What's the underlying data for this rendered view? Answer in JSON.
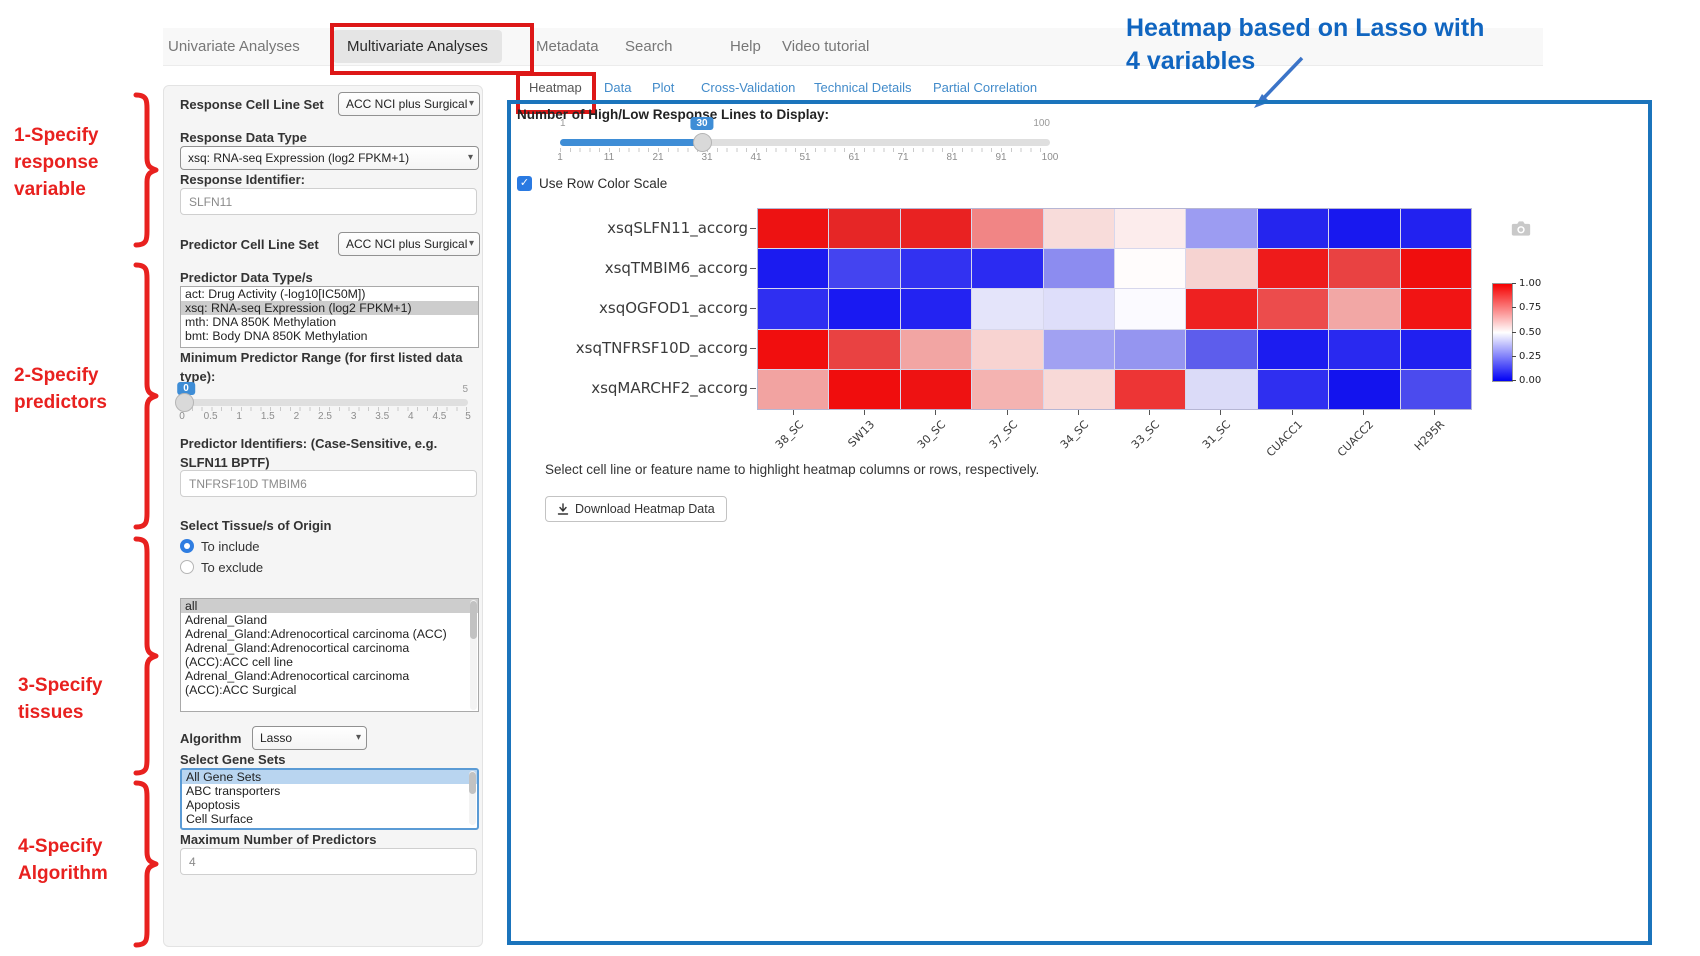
{
  "nav": {
    "items": [
      "Univariate Analyses",
      "Multivariate Analyses",
      "Metadata",
      "Search",
      "Help",
      "Video tutorial"
    ],
    "active_index": 1
  },
  "tabs": {
    "items": [
      "Heatmap",
      "Data",
      "Plot",
      "Cross-Validation",
      "Technical Details",
      "Partial Correlation"
    ],
    "active_index": 0
  },
  "annotations": {
    "steps": [
      {
        "lines": [
          "1-Specify",
          "response",
          "variable"
        ]
      },
      {
        "lines": [
          "2-Specify",
          "predictors"
        ]
      },
      {
        "lines": [
          "3-Specify",
          "tissues"
        ]
      },
      {
        "lines": [
          "4-Specify",
          "Algorithm"
        ]
      }
    ],
    "note": "Heatmap based on Lasso with 4 variables",
    "colors": {
      "red": "#e8211f",
      "blue": "#1065c0",
      "box_border": "#1b74bc"
    }
  },
  "sidebar": {
    "response_set": {
      "label": "Response Cell Line Set",
      "value": "ACC NCI plus Surgical"
    },
    "response_type": {
      "label": "Response Data Type",
      "value": "xsq: RNA-seq Expression (log2 FPKM+1)"
    },
    "response_id": {
      "label": "Response Identifier:",
      "value": "SLFN11"
    },
    "predictor_set": {
      "label": "Predictor Cell Line Set",
      "value": "ACC NCI plus Surgical"
    },
    "predictor_types": {
      "label": "Predictor Data Type/s",
      "options": [
        "act: Drug Activity (-log10[IC50M])",
        "xsq: RNA-seq Expression (log2 FPKM+1)",
        "mth: DNA 850K Methylation",
        "bmt: Body DNA 850K Methylation"
      ],
      "selected_index": 1
    },
    "min_range": {
      "label": "Minimum Predictor Range (for first listed data type):",
      "value": "0",
      "min": "0",
      "max": "5",
      "ticks": [
        "0",
        "0.5",
        "1",
        "1.5",
        "2",
        "2.5",
        "3",
        "3.5",
        "4",
        "4.5",
        "5"
      ]
    },
    "predictor_ids": {
      "label": "Predictor Identifiers: (Case-Sensitive, e.g. SLFN11 BPTF)",
      "value": "TNFRSF10D TMBIM6"
    },
    "tissues": {
      "label": "Select Tissue/s of Origin",
      "radios": [
        {
          "label": "To include",
          "selected": true
        },
        {
          "label": "To exclude",
          "selected": false
        }
      ],
      "options": [
        "all",
        "Adrenal_Gland",
        "Adrenal_Gland:Adrenocortical carcinoma (ACC)",
        "Adrenal_Gland:Adrenocortical carcinoma (ACC):ACC cell line",
        "Adrenal_Gland:Adrenocortical carcinoma (ACC):ACC Surgical"
      ],
      "selected_index": 0
    },
    "algorithm": {
      "label": "Algorithm",
      "value": "Lasso"
    },
    "gene_sets": {
      "label": "Select Gene Sets",
      "options": [
        "All Gene Sets",
        "ABC transporters",
        "Apoptosis",
        "Cell Surface"
      ],
      "selected_index": 0
    },
    "max_predictors": {
      "label": "Maximum Number of Predictors",
      "value": "4"
    }
  },
  "main": {
    "heading": "Number of High/Low Response Lines to Display:",
    "slider": {
      "min": "1",
      "max": "100",
      "value": "30",
      "ticks": [
        "1",
        "11",
        "21",
        "31",
        "41",
        "51",
        "61",
        "71",
        "81",
        "91",
        "100"
      ]
    },
    "row_scale_label": "Use Row Color Scale",
    "hint": "Select cell line or feature name to highlight heatmap columns or rows, respectively.",
    "download_label": "Download Heatmap Data"
  },
  "chart_data": {
    "type": "heatmap",
    "rows": [
      "xsqSLFN11_accorg",
      "xsqTMBIM6_accorg",
      "xsqOGFOD1_accorg",
      "xsqTNFRSF10D_accorg",
      "xsqMARCHF2_accorg"
    ],
    "columns": [
      "38_SC",
      "SW13",
      "30_SC",
      "37_SC",
      "34_SC",
      "33_SC",
      "31_SC",
      "CUACC1",
      "CUACC2",
      "H295R"
    ],
    "values": [
      [
        1.0,
        0.97,
        0.97,
        0.8,
        0.57,
        0.53,
        0.33,
        0.03,
        0.02,
        0.03
      ],
      [
        0.02,
        0.12,
        0.09,
        0.06,
        0.3,
        0.5,
        0.59,
        0.97,
        0.88,
        1.0
      ],
      [
        0.08,
        0.02,
        0.04,
        0.45,
        0.43,
        0.5,
        0.96,
        0.85,
        0.68,
        0.98
      ],
      [
        1.0,
        0.88,
        0.68,
        0.58,
        0.31,
        0.29,
        0.2,
        0.03,
        0.06,
        0.04
      ],
      [
        0.68,
        1.0,
        0.99,
        0.65,
        0.57,
        0.9,
        0.42,
        0.07,
        0.01,
        0.15
      ]
    ],
    "cell_colors": [
      [
        "#ed1212",
        "#e62626",
        "#e92222",
        "#f18585",
        "#f8dcda",
        "#fcecec",
        "#9c9cf2",
        "#2525ee",
        "#1818ef",
        "#2222f0"
      ],
      [
        "#1b1bf0",
        "#4444f0",
        "#3232f1",
        "#2b2bf2",
        "#8c8cf0",
        "#fffcfc",
        "#f6d3d1",
        "#ee1b1b",
        "#e94242",
        "#f00e0e"
      ],
      [
        "#2f2ff1",
        "#1919f2",
        "#2323f2",
        "#e4e4fa",
        "#dedefa",
        "#fbfaff",
        "#ee2121",
        "#ec4c4c",
        "#f2a7a5",
        "#f11414"
      ],
      [
        "#f10e0e",
        "#e94242",
        "#f2a5a3",
        "#f8d3d1",
        "#a1a1f2",
        "#9595f0",
        "#5d5dec",
        "#1c1cf0",
        "#2929f0",
        "#2020f0"
      ],
      [
        "#f2a3a1",
        "#f00d0d",
        "#ee1212",
        "#f4b3b1",
        "#f8d9d7",
        "#ed3535",
        "#dbdbf8",
        "#2f2ff0",
        "#1313ee",
        "#4b4bee"
      ]
    ],
    "colorbar_ticks": [
      "1.00",
      "0.75",
      "0.50",
      "0.25",
      "0.00"
    ],
    "legend_position": "right",
    "color_low": "#0000f5",
    "color_mid": "#ffffff",
    "color_high": "#f50000"
  }
}
